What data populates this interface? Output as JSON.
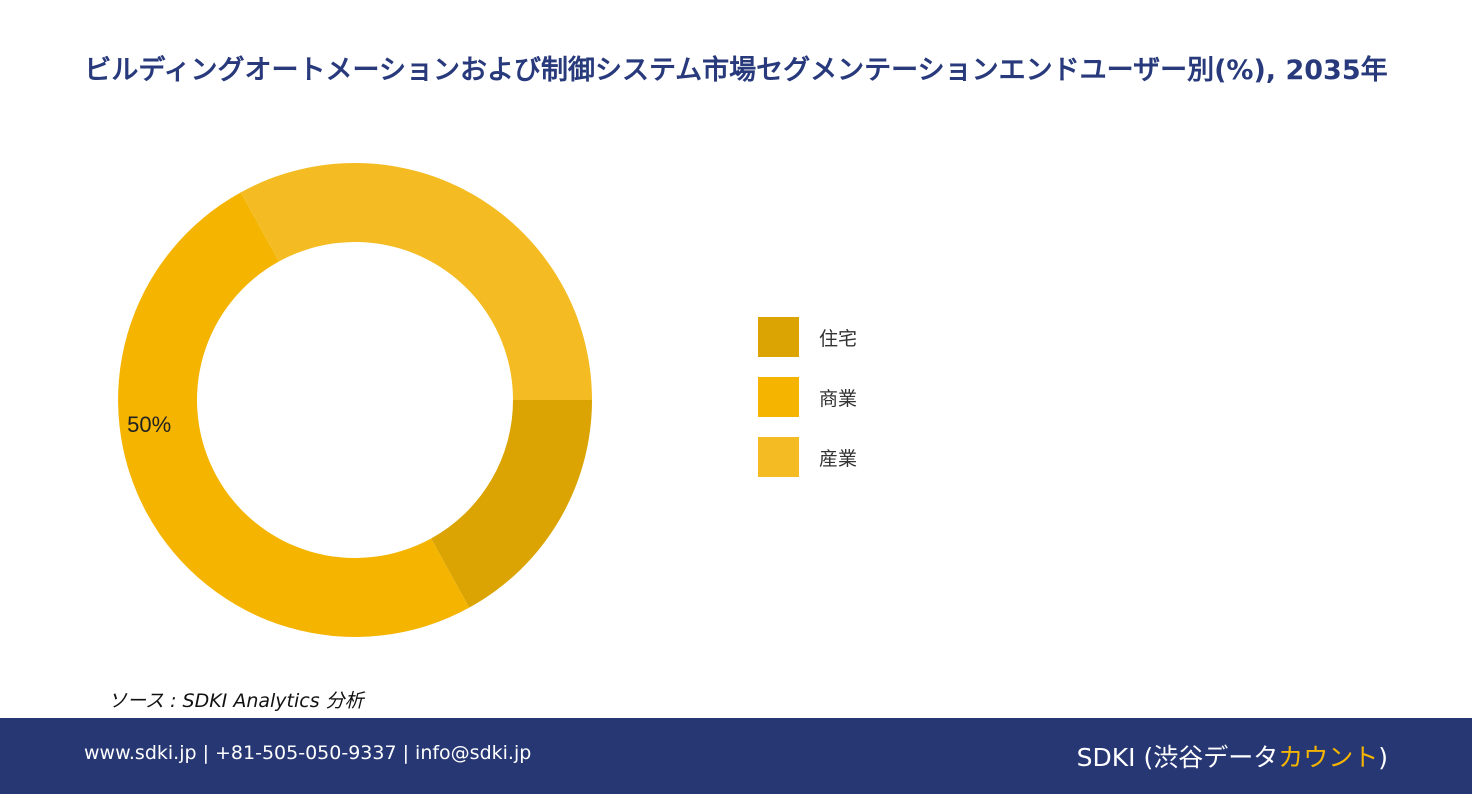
{
  "title": "ビルディングオートメーションおよび制御システム市場セグメンテーションエンドユーザー別(%), 2035年",
  "chart_data": {
    "type": "pie",
    "donut": true,
    "title": "ビルディングオートメーションおよび制御システム市場セグメンテーションエンドユーザー別(%), 2035年",
    "categories": [
      "住宅",
      "商業",
      "産業"
    ],
    "values": [
      17,
      50,
      33
    ],
    "colors": [
      "#dba402",
      "#f4b400",
      "#f4bc22"
    ],
    "data_labels": [
      "",
      "50%",
      ""
    ],
    "legend_position": "right"
  },
  "source": "ソース : SDKI Analytics 分析",
  "footer": {
    "contact": "www.sdki.jp | +81-505-050-9337 | info@sdki.jp",
    "brand_prefix": "SDKI (渋谷データ",
    "brand_accent": "カウント",
    "brand_suffix": ")"
  }
}
